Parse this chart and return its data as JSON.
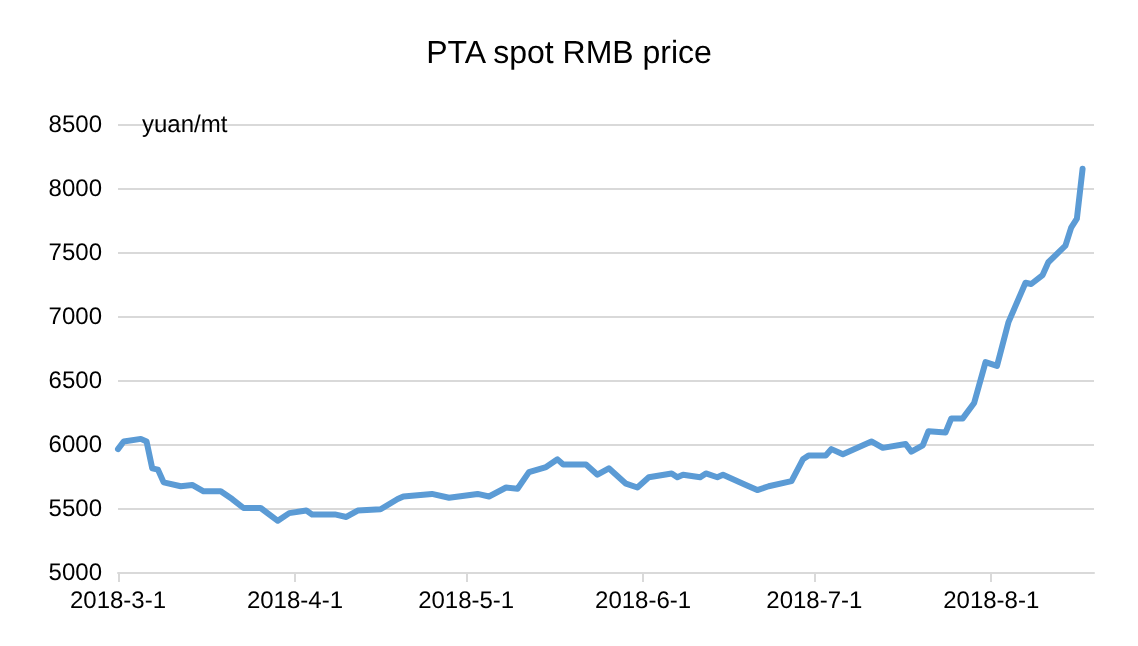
{
  "chart_data": {
    "type": "line",
    "title": "PTA spot RMB price",
    "ylabel": "yuan/mt",
    "x": [
      "2018-03-01",
      "2018-03-02",
      "2018-03-05",
      "2018-03-06",
      "2018-03-07",
      "2018-03-08",
      "2018-03-09",
      "2018-03-12",
      "2018-03-14",
      "2018-03-16",
      "2018-03-19",
      "2018-03-21",
      "2018-03-23",
      "2018-03-26",
      "2018-03-29",
      "2018-03-31",
      "2018-04-03",
      "2018-04-04",
      "2018-04-08",
      "2018-04-10",
      "2018-04-12",
      "2018-04-16",
      "2018-04-19",
      "2018-04-20",
      "2018-04-25",
      "2018-04-28",
      "2018-05-03",
      "2018-05-05",
      "2018-05-08",
      "2018-05-10",
      "2018-05-12",
      "2018-05-15",
      "2018-05-17",
      "2018-05-18",
      "2018-05-22",
      "2018-05-24",
      "2018-05-26",
      "2018-05-29",
      "2018-05-31",
      "2018-06-02",
      "2018-06-06",
      "2018-06-07",
      "2018-06-08",
      "2018-06-11",
      "2018-06-12",
      "2018-06-14",
      "2018-06-15",
      "2018-06-19",
      "2018-06-21",
      "2018-06-23",
      "2018-06-27",
      "2018-06-29",
      "2018-06-30",
      "2018-07-03",
      "2018-07-04",
      "2018-07-06",
      "2018-07-11",
      "2018-07-13",
      "2018-07-17",
      "2018-07-18",
      "2018-07-20",
      "2018-07-21",
      "2018-07-24",
      "2018-07-25",
      "2018-07-27",
      "2018-07-29",
      "2018-07-31",
      "2018-08-02",
      "2018-08-04",
      "2018-08-07",
      "2018-08-08",
      "2018-08-10",
      "2018-08-11",
      "2018-08-14",
      "2018-08-15",
      "2018-08-16",
      "2018-08-17"
    ],
    "series": [
      {
        "color": "#5b9bd5",
        "values": [
          5960,
          6020,
          6040,
          6020,
          5810,
          5800,
          5700,
          5670,
          5680,
          5630,
          5630,
          5570,
          5500,
          5500,
          5400,
          5460,
          5480,
          5450,
          5450,
          5430,
          5480,
          5490,
          5570,
          5590,
          5610,
          5580,
          5610,
          5590,
          5660,
          5650,
          5780,
          5820,
          5880,
          5840,
          5840,
          5760,
          5810,
          5690,
          5660,
          5740,
          5770,
          5740,
          5760,
          5740,
          5770,
          5740,
          5760,
          5680,
          5640,
          5670,
          5710,
          5880,
          5910,
          5910,
          5960,
          5920,
          6020,
          5970,
          6000,
          5940,
          5990,
          6100,
          6090,
          6200,
          6200,
          6320,
          6640,
          6610,
          6950,
          7260,
          7250,
          7320,
          7420,
          7550,
          7690,
          7760,
          8150
        ]
      }
    ],
    "xlim": [
      "2018-03-01",
      "2018-08-19"
    ],
    "xticks": [
      {
        "value": "2018-03-01",
        "label": "2018-3-1"
      },
      {
        "value": "2018-04-01",
        "label": "2018-4-1"
      },
      {
        "value": "2018-05-01",
        "label": "2018-5-1"
      },
      {
        "value": "2018-06-01",
        "label": "2018-6-1"
      },
      {
        "value": "2018-07-01",
        "label": "2018-7-1"
      },
      {
        "value": "2018-08-01",
        "label": "2018-8-1"
      }
    ],
    "ylim": [
      5000,
      8500
    ],
    "yticks": [
      5000,
      5500,
      6000,
      6500,
      7000,
      7500,
      8000,
      8500
    ],
    "grid": "y",
    "marker": "none",
    "line_style": "solid"
  }
}
